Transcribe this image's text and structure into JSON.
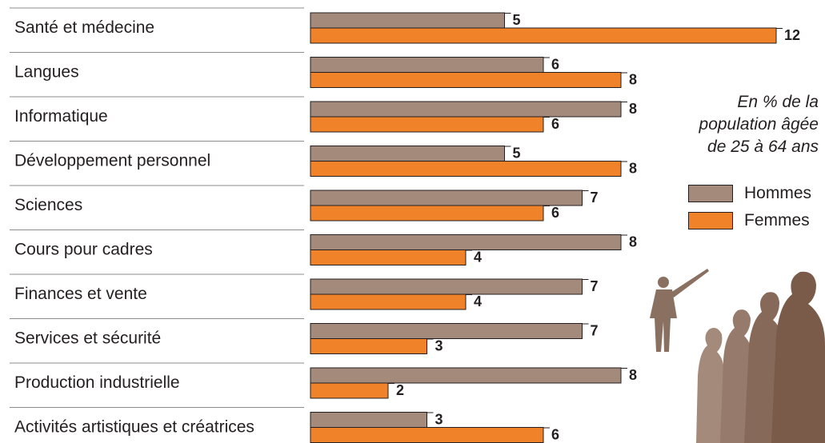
{
  "chart_data": {
    "type": "bar",
    "orientation": "horizontal",
    "categories": [
      "Santé et médecine",
      "Langues",
      "Informatique",
      "Développement personnel",
      "Sciences",
      "Cours pour cadres",
      "Finances et vente",
      "Services et sécurité",
      "Production industrielle",
      "Activités artistiques et créatrices"
    ],
    "series": [
      {
        "name": "Hommes",
        "color": "#a48a7b",
        "values": [
          5,
          6,
          8,
          5,
          7,
          8,
          7,
          7,
          8,
          3
        ]
      },
      {
        "name": "Femmes",
        "color": "#f0822a",
        "values": [
          12,
          8,
          6,
          8,
          6,
          4,
          4,
          3,
          2,
          6
        ]
      }
    ],
    "note": [
      "En % de la",
      "population âgée",
      "de 25 à 64 ans"
    ],
    "legend_placement": "right",
    "xlim": [
      0,
      12
    ]
  }
}
